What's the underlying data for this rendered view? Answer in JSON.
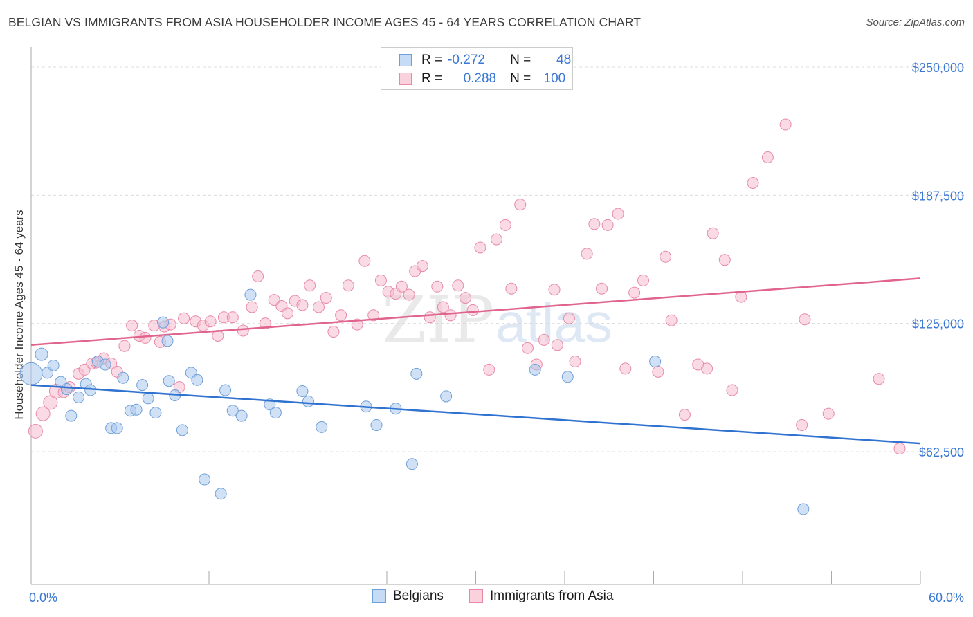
{
  "header": {
    "title": "BELGIAN VS IMMIGRANTS FROM ASIA HOUSEHOLDER INCOME AGES 45 - 64 YEARS CORRELATION CHART",
    "source": "Source: ZipAtlas.com"
  },
  "watermark": "ZIPatlas",
  "legend": {
    "rows": [
      {
        "r_label": "R =",
        "r_value": "-0.272",
        "n_label": "N =",
        "n_value": "48"
      },
      {
        "r_label": "R =",
        "r_value": "0.288",
        "n_label": "N =",
        "n_value": "100"
      }
    ]
  },
  "colors": {
    "blue_fill": "#a9c8ef",
    "blue_stroke": "#6f9fd8",
    "blue_line": "#2f72d0",
    "pink_fill": "#f6bccd",
    "pink_stroke": "#e88aa6",
    "pink_line": "#e0648c",
    "tick_label": "#3a78d4",
    "grid": "#dcdcdc"
  },
  "chart_data": {
    "type": "scatter",
    "title": "BELGIAN VS IMMIGRANTS FROM ASIA HOUSEHOLDER INCOME AGES 45 - 64 YEARS CORRELATION CHART",
    "xlabel": "",
    "ylabel": "Householder Income Ages 45 - 64 years",
    "xlim": [
      0,
      60
    ],
    "ylim": [
      5000,
      262000
    ],
    "x_tick_labels": [
      "0.0%",
      "60.0%"
    ],
    "y_ticks": [
      62500,
      125000,
      187500,
      250000
    ],
    "y_tick_labels": [
      "$62,500",
      "$125,000",
      "$187,500",
      "$250,000"
    ],
    "grid": true,
    "legend_position": "top-center",
    "series": [
      {
        "name": "Belgians",
        "trend": {
          "x": [
            0,
            60
          ],
          "y": [
            95000,
            66500
          ]
        },
        "points": [
          [
            0.0,
            100500,
            16
          ],
          [
            0.7,
            110000,
            9
          ],
          [
            1.1,
            101000,
            8
          ],
          [
            1.5,
            104500,
            8
          ],
          [
            2.0,
            96500,
            8
          ],
          [
            2.4,
            93000,
            8
          ],
          [
            2.7,
            80000,
            8
          ],
          [
            3.2,
            89000,
            8
          ],
          [
            3.7,
            95500,
            8
          ],
          [
            4.0,
            92500,
            8
          ],
          [
            4.5,
            106500,
            8
          ],
          [
            5.0,
            105000,
            8
          ],
          [
            5.4,
            74000,
            8
          ],
          [
            5.8,
            74000,
            8
          ],
          [
            6.2,
            98500,
            8
          ],
          [
            6.7,
            82500,
            8
          ],
          [
            7.1,
            83000,
            8
          ],
          [
            7.5,
            95000,
            8
          ],
          [
            7.9,
            88500,
            8
          ],
          [
            8.4,
            81500,
            8
          ],
          [
            8.9,
            125500,
            8
          ],
          [
            9.2,
            116500,
            8
          ],
          [
            9.3,
            97000,
            8
          ],
          [
            9.7,
            90000,
            8
          ],
          [
            10.2,
            73000,
            8
          ],
          [
            10.8,
            101000,
            8
          ],
          [
            11.2,
            97500,
            8
          ],
          [
            11.7,
            49000,
            8
          ],
          [
            12.8,
            42000,
            8
          ],
          [
            13.1,
            92500,
            8
          ],
          [
            13.6,
            82500,
            8
          ],
          [
            14.2,
            80000,
            8
          ],
          [
            14.8,
            139000,
            8
          ],
          [
            16.1,
            85500,
            8
          ],
          [
            16.5,
            81500,
            8
          ],
          [
            18.3,
            92000,
            8
          ],
          [
            18.7,
            87000,
            8
          ],
          [
            19.6,
            74500,
            8
          ],
          [
            22.6,
            84500,
            8
          ],
          [
            23.3,
            75500,
            8
          ],
          [
            24.6,
            83500,
            8
          ],
          [
            25.7,
            56500,
            8
          ],
          [
            26.0,
            100500,
            8
          ],
          [
            28.0,
            89500,
            8
          ],
          [
            34.0,
            102500,
            8
          ],
          [
            36.2,
            99000,
            8
          ],
          [
            42.1,
            106500,
            8
          ],
          [
            52.1,
            34500,
            8
          ]
        ]
      },
      {
        "name": "Immigrants from Asia",
        "trend": {
          "x": [
            0,
            60
          ],
          "y": [
            114500,
            147000
          ]
        },
        "points": [
          [
            0.3,
            72500,
            10
          ],
          [
            0.8,
            81000,
            10
          ],
          [
            1.3,
            86500,
            10
          ],
          [
            1.7,
            92000,
            10
          ],
          [
            2.2,
            91500,
            8
          ],
          [
            2.6,
            94000,
            8
          ],
          [
            3.2,
            100500,
            8
          ],
          [
            3.6,
            102500,
            8
          ],
          [
            4.1,
            105500,
            8
          ],
          [
            4.4,
            106000,
            8
          ],
          [
            4.9,
            108000,
            8
          ],
          [
            5.4,
            105500,
            8
          ],
          [
            5.8,
            101500,
            8
          ],
          [
            6.3,
            114000,
            8
          ],
          [
            6.8,
            124000,
            8
          ],
          [
            7.3,
            119000,
            8
          ],
          [
            7.7,
            118000,
            8
          ],
          [
            8.3,
            124000,
            8
          ],
          [
            8.7,
            116000,
            8
          ],
          [
            9.0,
            123500,
            8
          ],
          [
            9.4,
            124500,
            8
          ],
          [
            10.0,
            94000,
            8
          ],
          [
            10.3,
            127500,
            8
          ],
          [
            11.1,
            126000,
            8
          ],
          [
            11.6,
            124000,
            8
          ],
          [
            12.1,
            126000,
            8
          ],
          [
            12.6,
            119000,
            8
          ],
          [
            13.0,
            128000,
            8
          ],
          [
            13.6,
            128000,
            8
          ],
          [
            14.3,
            121500,
            8
          ],
          [
            14.9,
            133000,
            8
          ],
          [
            15.3,
            148000,
            8
          ],
          [
            15.8,
            125000,
            8
          ],
          [
            16.4,
            136500,
            8
          ],
          [
            16.9,
            133500,
            8
          ],
          [
            17.3,
            130000,
            8
          ],
          [
            17.8,
            136000,
            8
          ],
          [
            18.3,
            134000,
            8
          ],
          [
            18.8,
            143500,
            8
          ],
          [
            19.4,
            133000,
            8
          ],
          [
            19.9,
            137500,
            8
          ],
          [
            20.4,
            121000,
            8
          ],
          [
            20.9,
            129000,
            8
          ],
          [
            21.4,
            143500,
            8
          ],
          [
            22.0,
            124500,
            8
          ],
          [
            22.5,
            155500,
            8
          ],
          [
            23.1,
            129000,
            8
          ],
          [
            23.6,
            146000,
            8
          ],
          [
            24.1,
            140500,
            8
          ],
          [
            24.6,
            139500,
            8
          ],
          [
            25.0,
            143000,
            8
          ],
          [
            25.5,
            139000,
            8
          ],
          [
            25.9,
            150500,
            8
          ],
          [
            26.4,
            153000,
            8
          ],
          [
            26.9,
            128000,
            8
          ],
          [
            27.4,
            143000,
            8
          ],
          [
            27.8,
            133000,
            8
          ],
          [
            28.3,
            129000,
            8
          ],
          [
            28.8,
            143500,
            8
          ],
          [
            29.3,
            137500,
            8
          ],
          [
            29.8,
            131500,
            8
          ],
          [
            30.3,
            162000,
            8
          ],
          [
            30.9,
            102500,
            8
          ],
          [
            31.4,
            166000,
            8
          ],
          [
            32.0,
            173000,
            8
          ],
          [
            32.4,
            142000,
            8
          ],
          [
            33.0,
            183000,
            8
          ],
          [
            33.5,
            113000,
            8
          ],
          [
            34.1,
            105000,
            8
          ],
          [
            34.6,
            117000,
            8
          ],
          [
            35.3,
            141500,
            8
          ],
          [
            35.5,
            114500,
            8
          ],
          [
            36.3,
            127500,
            8
          ],
          [
            36.7,
            106500,
            8
          ],
          [
            37.5,
            159000,
            8
          ],
          [
            38.0,
            173500,
            8
          ],
          [
            38.5,
            142000,
            8
          ],
          [
            38.9,
            173000,
            8
          ],
          [
            39.6,
            178500,
            8
          ],
          [
            40.1,
            103000,
            8
          ],
          [
            40.7,
            140000,
            8
          ],
          [
            41.3,
            146000,
            8
          ],
          [
            42.3,
            101500,
            8
          ],
          [
            42.8,
            157500,
            8
          ],
          [
            43.2,
            126500,
            8
          ],
          [
            44.1,
            80500,
            8
          ],
          [
            45.0,
            105000,
            8
          ],
          [
            45.6,
            103000,
            8
          ],
          [
            46.0,
            169000,
            8
          ],
          [
            46.8,
            156000,
            8
          ],
          [
            47.3,
            92500,
            8
          ],
          [
            47.9,
            138000,
            8
          ],
          [
            48.7,
            193500,
            8
          ],
          [
            49.7,
            206000,
            8
          ],
          [
            50.9,
            222000,
            8
          ],
          [
            52.0,
            75500,
            8
          ],
          [
            52.2,
            127000,
            8
          ],
          [
            53.8,
            81000,
            8
          ],
          [
            57.2,
            98000,
            8
          ],
          [
            58.6,
            64000,
            8
          ]
        ]
      }
    ]
  },
  "bottom_legend": [
    {
      "label": "Belgians"
    },
    {
      "label": "Immigrants from Asia"
    }
  ]
}
